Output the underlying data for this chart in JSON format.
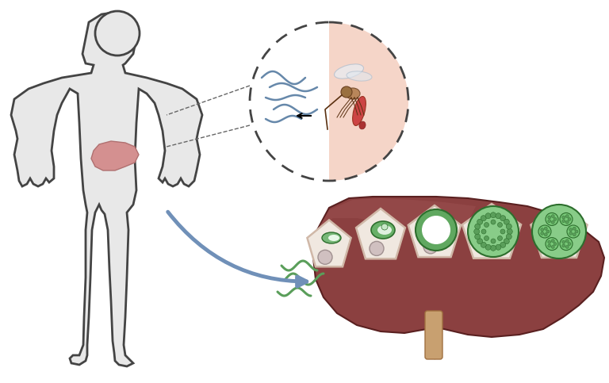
{
  "bg_color": "#ffffff",
  "body_outline_color": "#444444",
  "body_fill_color": "#e8e8e8",
  "liver_small_color": "#c87878",
  "liver_large_color": "#8B4040",
  "cell_fill_color": "#f0e8e0",
  "cell_border_color": "#d0b8a8",
  "parasite_green": "#5a9e5a",
  "parasite_light_green": "#88cc88",
  "parasite_dark_green": "#2d6e2d",
  "parasite_bg_green": "#b8ddb8",
  "arrow_blue": "#7090b8",
  "skin_color": "#f5d5c8",
  "sporozoite_blue": "#6688aa",
  "dashed_color": "#444444",
  "figsize": [
    7.68,
    4.83
  ],
  "dpi": 100
}
